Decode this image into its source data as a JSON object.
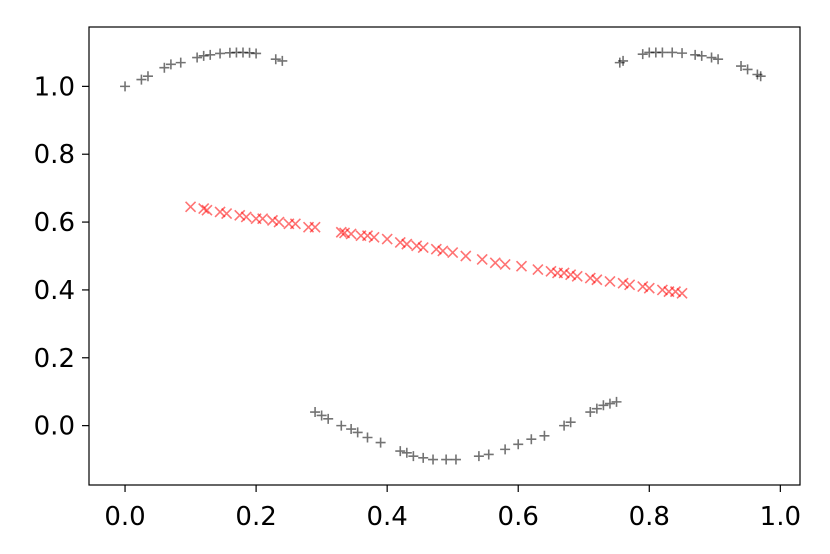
{
  "chart_data": {
    "type": "scatter",
    "title": "",
    "xlabel": "",
    "ylabel": "",
    "xlim": [
      -0.055,
      1.03
    ],
    "ylim": [
      -0.175,
      1.175
    ],
    "x_ticks": [
      0.0,
      0.2,
      0.4,
      0.6,
      0.8,
      1.0
    ],
    "x_tick_labels": [
      "0.0",
      "0.2",
      "0.4",
      "0.6",
      "0.8",
      "1.0"
    ],
    "y_ticks": [
      0.0,
      0.2,
      0.4,
      0.6,
      0.8,
      1.0
    ],
    "y_tick_labels": [
      "0.0",
      "0.2",
      "0.4",
      "0.6",
      "0.8",
      "1.0"
    ],
    "grid": false,
    "legend": "none",
    "series": [
      {
        "marker": "plus",
        "color": "#000000",
        "points": [
          [
            0.0,
            1.0
          ],
          [
            0.025,
            1.02
          ],
          [
            0.035,
            1.03
          ],
          [
            0.06,
            1.055
          ],
          [
            0.07,
            1.065
          ],
          [
            0.085,
            1.07
          ],
          [
            0.11,
            1.085
          ],
          [
            0.12,
            1.09
          ],
          [
            0.13,
            1.093
          ],
          [
            0.145,
            1.097
          ],
          [
            0.16,
            1.099
          ],
          [
            0.17,
            1.1
          ],
          [
            0.18,
            1.1
          ],
          [
            0.19,
            1.099
          ],
          [
            0.2,
            1.097
          ],
          [
            0.23,
            1.08
          ],
          [
            0.24,
            1.075
          ],
          [
            0.755,
            1.07
          ],
          [
            0.76,
            1.075
          ],
          [
            0.79,
            1.095
          ],
          [
            0.8,
            1.1
          ],
          [
            0.81,
            1.1
          ],
          [
            0.82,
            1.1
          ],
          [
            0.835,
            1.1
          ],
          [
            0.85,
            1.098
          ],
          [
            0.87,
            1.093
          ],
          [
            0.88,
            1.09
          ],
          [
            0.895,
            1.085
          ],
          [
            0.905,
            1.08
          ],
          [
            0.94,
            1.06
          ],
          [
            0.95,
            1.05
          ],
          [
            0.965,
            1.035
          ],
          [
            0.97,
            1.03
          ],
          [
            0.29,
            0.04
          ],
          [
            0.3,
            0.03
          ],
          [
            0.31,
            0.02
          ],
          [
            0.33,
            0.0
          ],
          [
            0.345,
            -0.01
          ],
          [
            0.355,
            -0.02
          ],
          [
            0.37,
            -0.035
          ],
          [
            0.39,
            -0.05
          ],
          [
            0.42,
            -0.075
          ],
          [
            0.43,
            -0.08
          ],
          [
            0.44,
            -0.09
          ],
          [
            0.455,
            -0.095
          ],
          [
            0.47,
            -0.1
          ],
          [
            0.49,
            -0.1
          ],
          [
            0.505,
            -0.1
          ],
          [
            0.54,
            -0.09
          ],
          [
            0.555,
            -0.085
          ],
          [
            0.58,
            -0.07
          ],
          [
            0.6,
            -0.055
          ],
          [
            0.62,
            -0.04
          ],
          [
            0.64,
            -0.03
          ],
          [
            0.67,
            0.0
          ],
          [
            0.68,
            0.01
          ],
          [
            0.71,
            0.04
          ],
          [
            0.72,
            0.05
          ],
          [
            0.73,
            0.06
          ],
          [
            0.74,
            0.065
          ],
          [
            0.75,
            0.07
          ]
        ]
      },
      {
        "marker": "x",
        "color": "#ff0000",
        "points": [
          [
            0.1,
            0.645
          ],
          [
            0.12,
            0.64
          ],
          [
            0.125,
            0.635
          ],
          [
            0.145,
            0.63
          ],
          [
            0.155,
            0.625
          ],
          [
            0.175,
            0.62
          ],
          [
            0.185,
            0.615
          ],
          [
            0.2,
            0.61
          ],
          [
            0.21,
            0.61
          ],
          [
            0.225,
            0.605
          ],
          [
            0.235,
            0.6
          ],
          [
            0.25,
            0.595
          ],
          [
            0.26,
            0.595
          ],
          [
            0.28,
            0.585
          ],
          [
            0.29,
            0.585
          ],
          [
            0.33,
            0.57
          ],
          [
            0.335,
            0.568
          ],
          [
            0.345,
            0.565
          ],
          [
            0.36,
            0.56
          ],
          [
            0.37,
            0.56
          ],
          [
            0.38,
            0.555
          ],
          [
            0.4,
            0.55
          ],
          [
            0.42,
            0.54
          ],
          [
            0.43,
            0.535
          ],
          [
            0.445,
            0.53
          ],
          [
            0.455,
            0.525
          ],
          [
            0.475,
            0.52
          ],
          [
            0.485,
            0.515
          ],
          [
            0.5,
            0.51
          ],
          [
            0.52,
            0.5
          ],
          [
            0.545,
            0.49
          ],
          [
            0.565,
            0.48
          ],
          [
            0.58,
            0.475
          ],
          [
            0.605,
            0.47
          ],
          [
            0.63,
            0.46
          ],
          [
            0.65,
            0.455
          ],
          [
            0.66,
            0.45
          ],
          [
            0.67,
            0.45
          ],
          [
            0.68,
            0.445
          ],
          [
            0.69,
            0.44
          ],
          [
            0.71,
            0.435
          ],
          [
            0.72,
            0.43
          ],
          [
            0.74,
            0.425
          ],
          [
            0.76,
            0.42
          ],
          [
            0.77,
            0.415
          ],
          [
            0.79,
            0.41
          ],
          [
            0.8,
            0.405
          ],
          [
            0.82,
            0.4
          ],
          [
            0.83,
            0.395
          ],
          [
            0.84,
            0.395
          ],
          [
            0.85,
            0.39
          ]
        ]
      }
    ]
  }
}
